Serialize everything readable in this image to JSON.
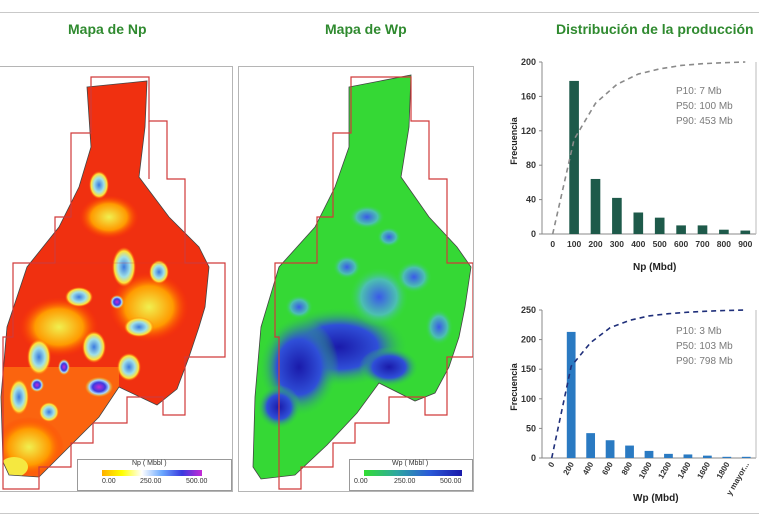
{
  "titles": {
    "np_map": "Mapa de Np",
    "wp_map": "Mapa de Wp",
    "distribution": "Distribución de la producción"
  },
  "np_map": {
    "legend_title": "Np ( Mbbl )",
    "legend_ticks": [
      "0.00",
      "250.00",
      "500.00"
    ],
    "colors": [
      "#f5d800",
      "#ffffff",
      "#3a3adf",
      "#c62bd6"
    ]
  },
  "wp_map": {
    "legend_title": "Wp ( Mbbl )",
    "legend_ticks": [
      "0.00",
      "250.00",
      "500.00"
    ],
    "colors": [
      "#33dd33",
      "#1a1aaa"
    ]
  },
  "chart_data": [
    {
      "type": "bar",
      "ylabel": "Frecuencia",
      "xlabel": "Np (Mbd)",
      "x_ticks": [
        "0",
        "100",
        "200",
        "300",
        "400",
        "500",
        "600",
        "700",
        "800",
        "900"
      ],
      "categories": [
        "100",
        "200",
        "300",
        "400",
        "500",
        "600",
        "700",
        "800",
        "900"
      ],
      "values": [
        178,
        64,
        42,
        25,
        19,
        10,
        10,
        5,
        4
      ],
      "ylim": [
        0,
        200
      ],
      "y_ticks": [
        "0",
        "40",
        "80",
        "120",
        "160",
        "200"
      ],
      "bar_color": "#1e5a4a",
      "curve_color": "#8a8a8a",
      "cumulative_curve": [
        0,
        55,
        76,
        87,
        93,
        96,
        98,
        99,
        99.6,
        100
      ],
      "stats": [
        "P10: 7 Mb",
        "P50: 100 Mb",
        "P90: 453 Mb"
      ]
    },
    {
      "type": "bar",
      "ylabel": "Frecuencia",
      "xlabel": "Wp (Mbd)",
      "x_ticks": [
        "0",
        "200",
        "400",
        "600",
        "800",
        "1000",
        "1200",
        "1400",
        "1600",
        "1800",
        "y mayor..."
      ],
      "categories": [
        "200",
        "400",
        "600",
        "800",
        "1000",
        "1200",
        "1400",
        "1600",
        "1800",
        "y mayor..."
      ],
      "values": [
        213,
        42,
        30,
        21,
        12,
        7,
        6,
        4,
        2,
        2
      ],
      "ylim": [
        0,
        250
      ],
      "y_ticks": [
        "0",
        "50",
        "100",
        "150",
        "200",
        "250"
      ],
      "bar_color": "#2a7ac2",
      "curve_color": "#1f2f7a",
      "cumulative_curve": [
        0,
        62,
        78,
        88,
        93,
        96,
        97.5,
        98.5,
        99.2,
        99.7,
        100
      ],
      "stats": [
        "P10: 3 Mb",
        "P50: 103 Mb",
        "P90: 798 Mb"
      ]
    }
  ]
}
